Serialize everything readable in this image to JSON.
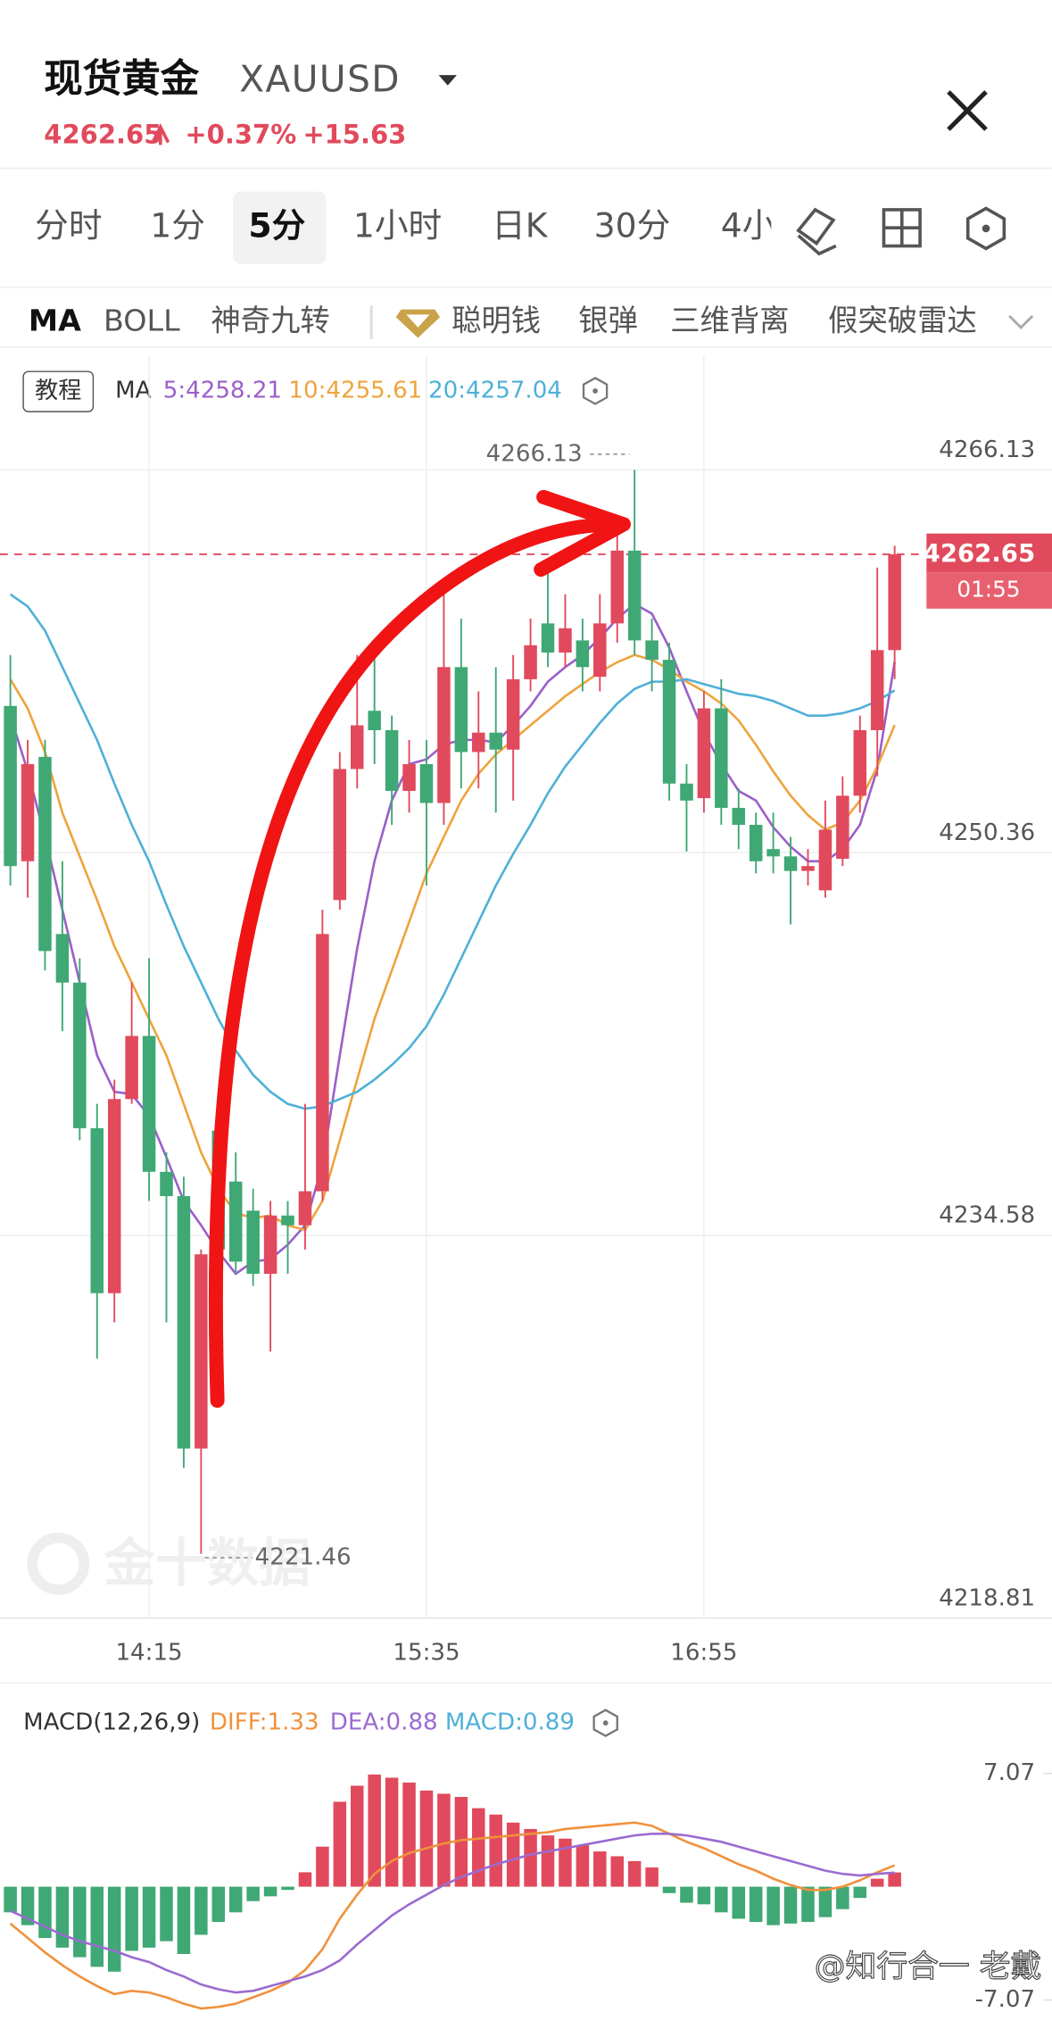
{
  "header": {
    "name": "现货黄金",
    "symbol": "XAUUSD",
    "price": "4262.65",
    "change_pct": "+0.37%",
    "change": "+15.63"
  },
  "tabs": [
    "分时",
    "1分",
    "5分",
    "1小时",
    "日K",
    "30分",
    "4小"
  ],
  "indicators": [
    "MA",
    "BOLL",
    "神奇九转",
    "聪明钱",
    "银弹",
    "三维背离",
    "假突破雷达"
  ],
  "watermark": "金十数据",
  "credit": "@知行合一 老戴",
  "chart_data": [
    {
      "type": "candlestick",
      "tutorial": "教程",
      "legend_title": "MA",
      "up_color": "#e14a5c",
      "down_color": "#3fa874",
      "grid": true,
      "categories": [
        null,
        null,
        null,
        null,
        null,
        null,
        null,
        null,
        "14:15",
        null,
        null,
        null,
        null,
        null,
        null,
        null,
        null,
        null,
        null,
        null,
        null,
        null,
        null,
        null,
        "15:35",
        null,
        null,
        null,
        null,
        null,
        null,
        null,
        null,
        null,
        null,
        null,
        null,
        null,
        null,
        null,
        "16:55",
        null,
        null,
        null,
        null,
        null,
        null,
        null,
        null,
        null,
        null,
        null
      ],
      "open": [
        4256.4,
        4250,
        4254.3,
        4247,
        4245,
        4239,
        4232.2,
        4240.2,
        4242.8,
        4237.2,
        4236.2,
        4225.8,
        4238.9,
        4236.8,
        4235.6,
        4233,
        4235.4,
        4235.0,
        4236.4,
        4248.4,
        4253.8,
        4256.2,
        4255.4,
        4252.9,
        4254.0,
        4252.4,
        4258.0,
        4254.5,
        4255.3,
        4254.6,
        4257.5,
        4259.8,
        4258.6,
        4259.1,
        4257.6,
        4259.8,
        4262.8,
        4259.1,
        4258.3,
        4253.2,
        4252.6,
        4256.3,
        4252.2,
        4251.5,
        4250.5,
        4250.2,
        4249.6,
        4248.8,
        4250.1,
        4252.7,
        4255.4,
        4258.7
      ],
      "high": [
        4258.5,
        4255,
        4255,
        4250,
        4246,
        4240,
        4241,
        4245,
        4246,
        4238,
        4237,
        4234,
        4239.5,
        4238,
        4236.5,
        4236,
        4236,
        4240,
        4248,
        4254.5,
        4258.5,
        4259,
        4256,
        4255,
        4255,
        4261,
        4260,
        4257,
        4258,
        4258.5,
        4260,
        4262.5,
        4261,
        4260,
        4261,
        4264,
        4266.13,
        4260,
        4259,
        4254,
        4257,
        4257.5,
        4253,
        4252,
        4252,
        4251,
        4250.5,
        4252.5,
        4253.5,
        4256,
        4262.1,
        4263
      ],
      "low": [
        4249,
        4248.5,
        4245.5,
        4243,
        4238.5,
        4229.5,
        4231,
        4240,
        4236,
        4231,
        4225,
        4221.46,
        4233.5,
        4233,
        4232.5,
        4229.8,
        4233,
        4234,
        4236,
        4248,
        4253,
        4254,
        4251.5,
        4252,
        4249,
        4251.5,
        4253,
        4253,
        4252,
        4252.5,
        4257,
        4258,
        4258,
        4257,
        4257,
        4259,
        4258.5,
        4257,
        4252.5,
        4250.4,
        4252,
        4251.5,
        4250.5,
        4249.5,
        4249.5,
        4247.4,
        4249,
        4248.5,
        4249.8,
        4252,
        4253.5,
        4257.5
      ],
      "close": [
        4249.8,
        4254,
        4246.3,
        4245,
        4239,
        4232.2,
        4240.2,
        4242.8,
        4237.2,
        4236.2,
        4225.8,
        4233.8,
        4234.0,
        4233.5,
        4233,
        4235.4,
        4235.0,
        4236.4,
        4247,
        4253.8,
        4255.6,
        4255.4,
        4252.9,
        4254.0,
        4252.4,
        4258.0,
        4254.5,
        4255.3,
        4254.6,
        4257.5,
        4258.9,
        4258.6,
        4259.6,
        4258.0,
        4259.8,
        4262.8,
        4259.1,
        4258.3,
        4253.2,
        4252.5,
        4256.3,
        4252.2,
        4251.5,
        4250.0,
        4250.2,
        4249.6,
        4249.8,
        4251.3,
        4252.7,
        4255.4,
        4258.7,
        4262.65
      ],
      "series": [
        {
          "name": "5:4258.21",
          "color": "#9b5fc9",
          "values": [
            4256,
            4253.7,
            4251,
            4248,
            4245,
            4242,
            4240.5,
            4240.4,
            4239.5,
            4237.8,
            4236,
            4235,
            4233.9,
            4233,
            4233.5,
            4233.6,
            4234.2,
            4235,
            4237.5,
            4242,
            4246.4,
            4250,
            4252.5,
            4254,
            4254.2,
            4254.8,
            4255,
            4255,
            4254.9,
            4255.6,
            4256.4,
            4257.4,
            4258,
            4258.5,
            4259.2,
            4260,
            4260.6,
            4260.2,
            4258.8,
            4257,
            4255.3,
            4254,
            4252.9,
            4252.5,
            4251.4,
            4250.6,
            4250.0,
            4250.0,
            4250.5,
            4251.5,
            4253.8,
            4258.21
          ]
        },
        {
          "name": "10:4255.61",
          "color": "#eea43c",
          "values": [
            4257.5,
            4256.3,
            4254.5,
            4252,
            4250.2,
            4248.4,
            4246.5,
            4245,
            4243.5,
            4242,
            4240,
            4238,
            4236.5,
            4235.5,
            4235.3,
            4235.4,
            4235.0,
            4234.8,
            4236,
            4238.5,
            4241,
            4243.5,
            4245.5,
            4247.5,
            4249.5,
            4251,
            4252.5,
            4253.6,
            4254.4,
            4255,
            4255.6,
            4256.2,
            4256.8,
            4257.3,
            4257.8,
            4258.2,
            4258.5,
            4258.3,
            4257.9,
            4257.4,
            4257,
            4256.5,
            4255.8,
            4254.8,
            4253.7,
            4252.7,
            4251.9,
            4251.3,
            4251.6,
            4252.5,
            4253.9,
            4255.61
          ]
        },
        {
          "name": "20:4257.04",
          "color": "#4fb0d8",
          "values": [
            4261,
            4260.5,
            4259.5,
            4258,
            4256.5,
            4255,
            4253.2,
            4251.5,
            4250,
            4248.2,
            4246.5,
            4245,
            4243.5,
            4242.2,
            4241.2,
            4240.5,
            4240,
            4239.8,
            4239.9,
            4240.2,
            4240.5,
            4241,
            4241.6,
            4242.3,
            4243.2,
            4244.5,
            4246,
            4247.5,
            4249,
            4250.3,
            4251.5,
            4252.8,
            4253.9,
            4254.8,
            4255.7,
            4256.5,
            4257.1,
            4257.4,
            4257.4,
            4257.5,
            4257.3,
            4257.1,
            4256.9,
            4256.8,
            4256.6,
            4256.3,
            4256.0,
            4256.0,
            4256.1,
            4256.3,
            4256.6,
            4257.04
          ]
        }
      ],
      "ylim": [
        4218.81,
        4270.82
      ],
      "yticks": [
        4266.13,
        4250.36,
        4234.58,
        4218.81
      ],
      "annotations": {
        "high_label": "4266.13",
        "low_label": "4221.46",
        "last_price": "4262.65",
        "countdown": "01:55"
      }
    },
    {
      "type": "macd",
      "title": "MACD(12,26,9)",
      "histogram": {
        "name": "MACD:0.89",
        "color": "#4fb0d8",
        "up_color": "#e14a5c",
        "down_color": "#3fa874",
        "values": [
          -1.6,
          -2.4,
          -3.2,
          -3.8,
          -4.4,
          -5.0,
          -5.3,
          -4.0,
          -3.8,
          -3.4,
          -4.2,
          -3.0,
          -2.2,
          -1.6,
          -0.9,
          -0.6,
          -0.2,
          0.9,
          2.5,
          5.3,
          6.3,
          7.0,
          6.8,
          6.5,
          6.0,
          5.8,
          5.6,
          4.9,
          4.5,
          4.0,
          3.6,
          3.2,
          3.0,
          2.6,
          2.2,
          1.9,
          1.6,
          1.2,
          -0.4,
          -1.0,
          -1.1,
          -1.6,
          -2.0,
          -2.2,
          -2.4,
          -2.3,
          -2.2,
          -1.9,
          -1.4,
          -0.7,
          0.5,
          0.89
        ]
      },
      "series": [
        {
          "name": "DIFF:1.33",
          "color": "#f0913c",
          "values": [
            -2.3,
            -3.2,
            -4.1,
            -4.9,
            -5.6,
            -6.2,
            -6.7,
            -6.5,
            -6.6,
            -6.9,
            -7.3,
            -7.6,
            -7.5,
            -7.3,
            -6.9,
            -6.5,
            -6.0,
            -5.2,
            -3.9,
            -2.0,
            -0.5,
            0.8,
            1.6,
            2.1,
            2.4,
            2.7,
            2.9,
            3.0,
            3.1,
            3.2,
            3.3,
            3.4,
            3.6,
            3.7,
            3.8,
            3.9,
            4.0,
            3.8,
            3.3,
            2.8,
            2.4,
            1.9,
            1.4,
            1.0,
            0.5,
            0.1,
            -0.2,
            -0.2,
            0.0,
            0.4,
            0.9,
            1.33
          ]
        },
        {
          "name": "DEA:0.88",
          "color": "#9b6bd0",
          "values": [
            -1.5,
            -2.0,
            -2.5,
            -3.0,
            -3.4,
            -3.7,
            -4.0,
            -4.4,
            -4.7,
            -5.2,
            -5.6,
            -6.1,
            -6.4,
            -6.6,
            -6.5,
            -6.2,
            -5.9,
            -5.6,
            -5.2,
            -4.6,
            -3.6,
            -2.7,
            -1.8,
            -1.1,
            -0.5,
            0.1,
            0.6,
            1.0,
            1.4,
            1.7,
            2.0,
            2.2,
            2.4,
            2.6,
            2.8,
            3.0,
            3.2,
            3.3,
            3.3,
            3.2,
            3.0,
            2.8,
            2.5,
            2.2,
            1.9,
            1.6,
            1.3,
            1.0,
            0.8,
            0.7,
            0.8,
            0.88
          ]
        }
      ],
      "ylim": [
        -8.28,
        11.91
      ],
      "yticks": [
        7.07,
        -7.07
      ]
    }
  ]
}
